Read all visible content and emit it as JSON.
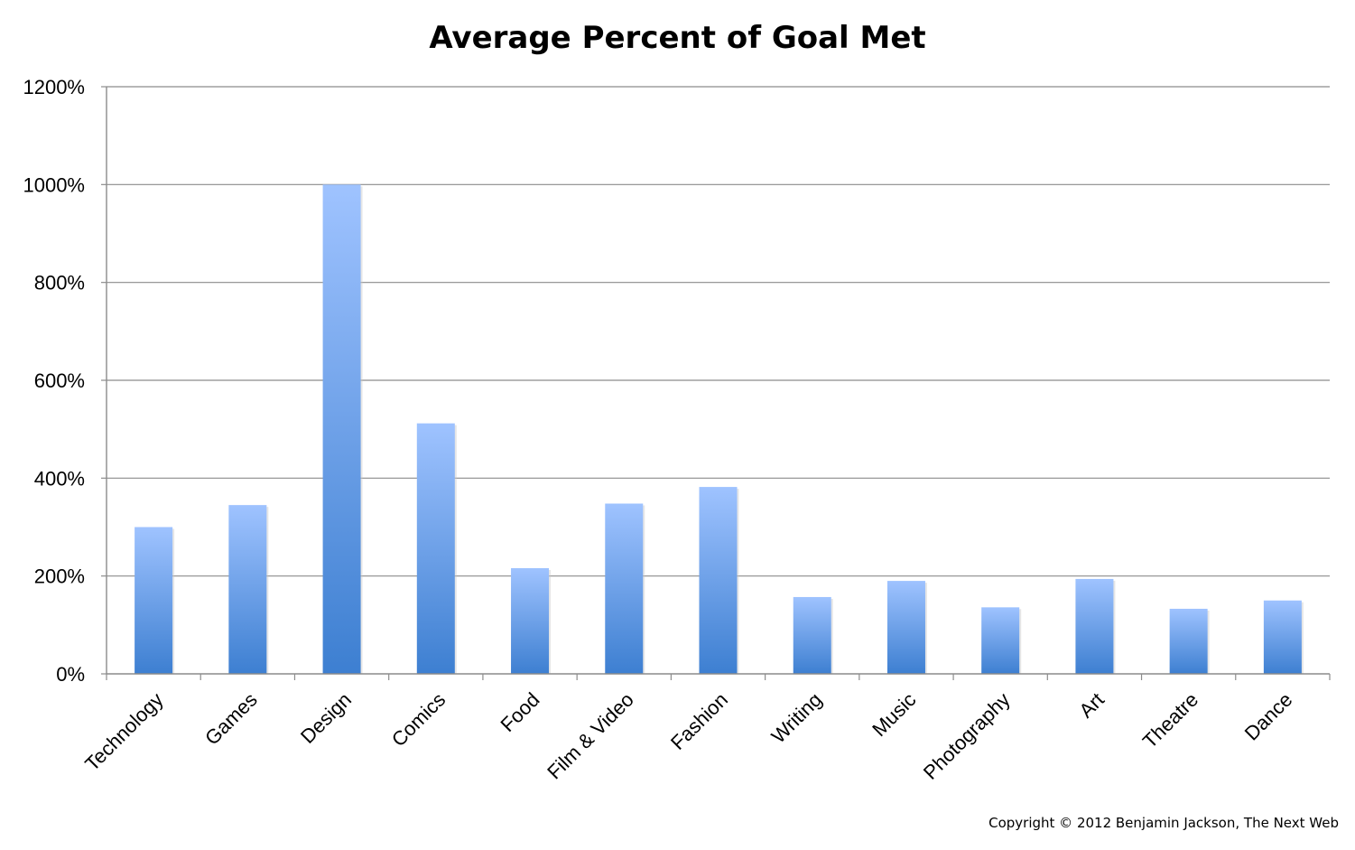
{
  "chart_data": {
    "type": "bar",
    "title": "Average Percent of Goal Met",
    "xlabel": "",
    "ylabel": "",
    "categories": [
      "Technology",
      "Games",
      "Design",
      "Comics",
      "Food",
      "Film & Video",
      "Fashion",
      "Writing",
      "Music",
      "Photography",
      "Art",
      "Theatre",
      "Dance"
    ],
    "values": [
      300,
      345,
      1000,
      512,
      216,
      348,
      382,
      157,
      190,
      136,
      194,
      133,
      150
    ],
    "ylim": [
      0,
      1200
    ],
    "yticks": [
      "0%",
      "200%",
      "400%",
      "600%",
      "800%",
      "1000%",
      "1200%"
    ],
    "grid": true,
    "legend": "none",
    "bar_color_top": "#9fc3ff",
    "bar_color_bottom": "#3d7fd1"
  },
  "footer": {
    "copyright": "Copyright © 2012 Benjamin Jackson, The Next Web"
  }
}
